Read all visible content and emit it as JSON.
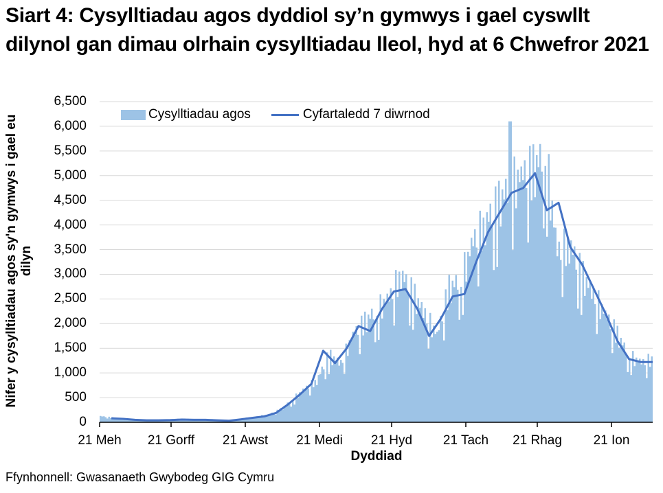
{
  "title": "Siart 4: Cysylltiadau agos dyddiol sy’n gymwys i gael cyswllt dilynol gan dimau olrhain cysylltiadau lleol, hyd at 6 Chwefror 2021",
  "ylabel": "Nifer y cysylltiadau agos sy'n gymwys i gael eu dilyn",
  "xlabel": "Dyddiad",
  "source": "Ffynhonnell: Gwasanaeth Gwybodeg GIG Cymru",
  "legend": {
    "bars": "Cysylltiadau agos",
    "line": "Cyfartaledd 7 diwrnod"
  },
  "colors": {
    "bars": "#9dc3e6",
    "line": "#4472c4",
    "grid": "#d9d9d9",
    "axis": "#000000"
  },
  "y_ticks": [
    "0",
    "500",
    "1,000",
    "1,500",
    "2,000",
    "2,500",
    "3,000",
    "3,500",
    "4,000",
    "4,500",
    "5,000",
    "5,500",
    "6,000",
    "6,500"
  ],
  "x_ticks": [
    "21 Meh",
    "21 Gorff",
    "21 Awst",
    "21 Medi",
    "21 Hyd",
    "21 Tach",
    "21 Rhag",
    "21 Ion"
  ],
  "chart_data": {
    "type": "bar",
    "title": "Siart 4: Cysylltiadau agos dyddiol sy’n gymwys i gael cyswllt dilynol gan dimau olrhain cysylltiadau lleol, hyd at 6 Chwefror 2021",
    "xlabel": "Dyddiad",
    "ylabel": "Nifer y cysylltiadau agos sy'n gymwys i gael eu dilyn",
    "ylim": [
      0,
      6500
    ],
    "grid": true,
    "legend_position": "top",
    "x_tick_labels": [
      "21 Meh",
      "21 Gorff",
      "21 Awst",
      "21 Medi",
      "21 Hyd",
      "21 Tach",
      "21 Rhag",
      "21 Ion"
    ],
    "start_date": "2020-06-21",
    "end_date": "2021-02-06",
    "series": [
      {
        "name": "Cysylltiadau agos",
        "type": "bar",
        "weekly_approx": [
          120,
          90,
          60,
          50,
          40,
          50,
          60,
          70,
          50,
          60,
          45,
          40,
          80,
          110,
          150,
          250,
          450,
          650,
          820,
          1300,
          1150,
          1700,
          1950,
          2200,
          2400,
          2900,
          2500,
          2100,
          1700,
          2600,
          2800,
          3500,
          3900,
          4200,
          4600,
          4800,
          4900,
          5300,
          3300,
          3500,
          2900,
          2500,
          2100,
          1700,
          1300,
          1150,
          1250,
          1200
        ],
        "peak_value": 6100
      },
      {
        "name": "Cyfartaledd 7 diwrnod",
        "type": "line",
        "weekly_approx": [
          null,
          80,
          70,
          50,
          40,
          40,
          45,
          55,
          50,
          50,
          40,
          30,
          60,
          90,
          120,
          190,
          360,
          560,
          780,
          1450,
          1200,
          1500,
          1950,
          1850,
          2300,
          2650,
          2700,
          2300,
          1750,
          2100,
          2550,
          2600,
          3250,
          3850,
          4250,
          4650,
          4750,
          5050,
          4300,
          4450,
          3550,
          3200,
          2700,
          2200,
          1650,
          1280,
          1220,
          1220
        ]
      }
    ]
  }
}
